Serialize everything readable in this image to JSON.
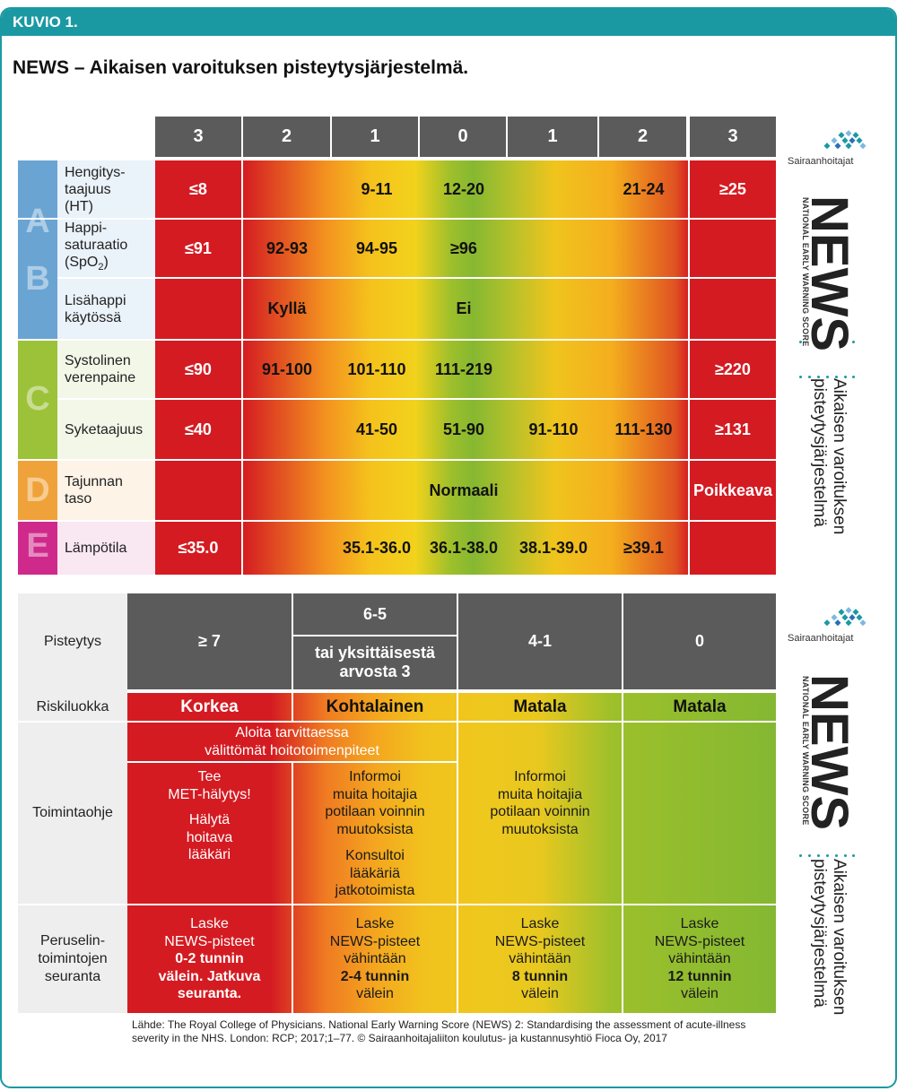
{
  "header": {
    "kuvio": "KUVIO 1.",
    "title": "NEWS – Aikaisen varoituksen pisteytysjärjestelmä."
  },
  "top_table": {
    "column_scores": [
      "3",
      "2",
      "1",
      "0",
      "1",
      "2",
      "3"
    ],
    "categories": [
      "A",
      "B",
      "C",
      "D",
      "E"
    ],
    "category_colors": {
      "A": "#6aa4d3",
      "B": "#6aa4d3",
      "C": "#9cc23a",
      "D": "#f0a23a",
      "E": "#cf2a8b"
    },
    "rows": [
      {
        "label": "Hengitys-\ntaajuus\n(HT)",
        "values": [
          "≤8",
          "",
          "9-11",
          "12-20",
          "",
          "21-24",
          "≥25"
        ]
      },
      {
        "label": "Happi-\nsaturaatio\n(SpO",
        "sub": "2",
        "label_end": ")",
        "values": [
          "≤91",
          "92-93",
          "94-95",
          "≥96",
          "",
          "",
          ""
        ]
      },
      {
        "label": "Lisähappi\nkäytössä",
        "values": [
          "",
          "Kyllä",
          "",
          "Ei",
          "",
          "",
          ""
        ]
      },
      {
        "label": "Systolinen\nverenpaine",
        "values": [
          "≤90",
          "91-100",
          "101-110",
          "111-219",
          "",
          "",
          "≥220"
        ]
      },
      {
        "label": "Syketaajuus",
        "values": [
          "≤40",
          "",
          "41-50",
          "51-90",
          "91-110",
          "111-130",
          "≥131"
        ]
      },
      {
        "label": "Tajunnan\ntaso",
        "values": [
          "",
          "",
          "",
          "Normaali",
          "",
          "",
          "Poikkeava"
        ]
      },
      {
        "label": "Lämpötila",
        "values": [
          "≤35.0",
          "",
          "35.1-36.0",
          "36.1-38.0",
          "38.1-39.0",
          "≥39.1",
          ""
        ]
      }
    ]
  },
  "bottom_table": {
    "labels": {
      "pisteytys": "Pisteytys",
      "riskiluokka": "Riskiluokka",
      "toimintaohje": "Toimintaohje",
      "seuranta": "Peruselin-\ntoimintojen\nseuranta"
    },
    "score_headers": [
      "≥ 7",
      "6-5",
      "tai yksittäisestä\narvosta 3",
      "4-1",
      "0"
    ],
    "risk": [
      "Korkea",
      "Kohtalainen",
      "Matala",
      "Matala"
    ],
    "action_top": "Aloita tarvittaessa\nvälittömät hoitotoimenpiteet",
    "action_high_1": "Tee\nMET-hälytys!",
    "action_high_2": "Hälytä\nhoitava\nlääkäri",
    "action_mid_1": "Informoi\nmuita hoitajia\npotilaan voinnin\nmuutoksista",
    "action_mid_2": "Konsultoi\nlääkäriä\njatkotoimista",
    "action_low": "Informoi\nmuita hoitajia\npotilaan voinnin\nmuutoksista",
    "monitor": [
      {
        "a": "Laske\nNEWS-pisteet",
        "b": "0-2 tunnin",
        "c": "välein. Jatkuva\nseuranta."
      },
      {
        "a": "Laske\nNEWS-pisteet\nvähintään",
        "b": "2-4 tunnin",
        "c": "välein"
      },
      {
        "a": "Laske\nNEWS-pisteet\nvähintään",
        "b": "8 tunnin",
        "c": "välein"
      },
      {
        "a": "Laske\nNEWS-pisteet\nvähintään",
        "b": "12 tunnin",
        "c": "välein"
      }
    ]
  },
  "side": {
    "logo_name": "Sairaanhoitajat",
    "news": "NEWS",
    "national": "NATIONAL EARLY WARNING SCORE",
    "sub1": "Aikaisen varoituksen",
    "sub2": "pisteytysjärjestelmä"
  },
  "source": "Lähde: The Royal College of Physicians. National Early Warning Score (NEWS) 2: Standardising the assessment of acute-illness severity in the NHS. London: RCP; 2017;1–77. © Sairaanhoitajaliiton koulutus- ja kustannusyhtiö Fioca Oy, 2017"
}
